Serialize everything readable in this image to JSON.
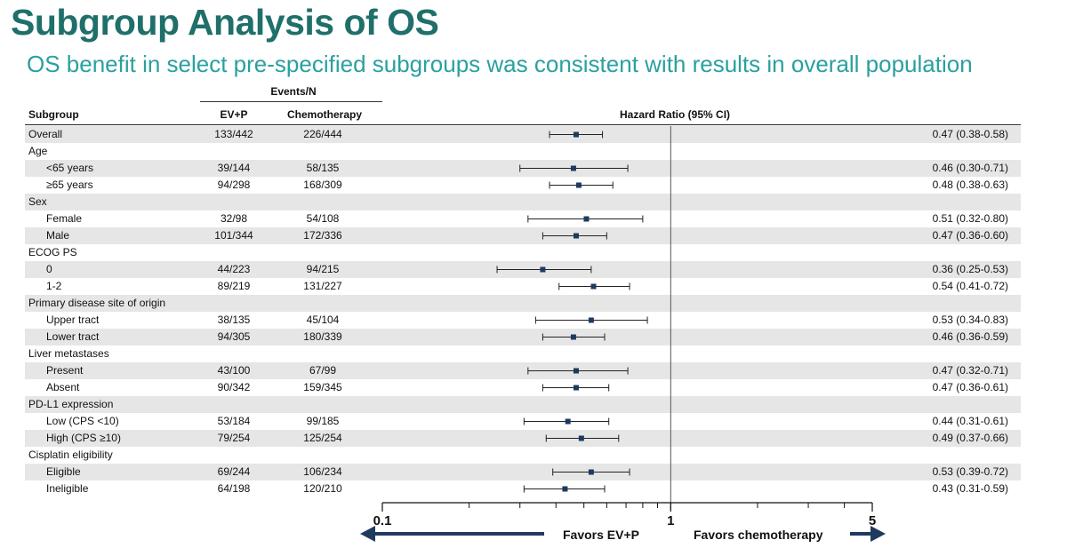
{
  "title": "Subgroup Analysis of OS",
  "subtitle": "OS benefit in select pre-specified subgroups was consistent with results in overall population",
  "table": {
    "events_header": "Events/N",
    "col_subgroup": "Subgroup",
    "col_evp": "EV+P",
    "col_chemo": "Chemotherapy",
    "col_hr": "Hazard Ratio (95% CI)"
  },
  "chart_data": {
    "type": "forest",
    "x_scale": "log",
    "xlim": [
      0.1,
      5
    ],
    "reference_line": 1,
    "ticks": [
      {
        "value": 0.1,
        "label": "0.1"
      },
      {
        "value": 1,
        "label": "1"
      },
      {
        "value": 5,
        "label": "5"
      }
    ],
    "favors_left": "Favors EV+P",
    "favors_right": "Favors chemotherapy",
    "rows": [
      {
        "label": "Overall",
        "indent": false,
        "shaded": true,
        "evp": "133/442",
        "chemo": "226/444",
        "hr": 0.47,
        "lo": 0.38,
        "hi": 0.58,
        "hr_text": "0.47 (0.38-0.58)"
      },
      {
        "label": "Age",
        "indent": false,
        "shaded": false,
        "evp": "",
        "chemo": "",
        "hr_text": ""
      },
      {
        "label": "<65 years",
        "indent": true,
        "shaded": true,
        "evp": "39/144",
        "chemo": "58/135",
        "hr": 0.46,
        "lo": 0.3,
        "hi": 0.71,
        "hr_text": "0.46 (0.30-0.71)"
      },
      {
        "label": "≥65 years",
        "indent": true,
        "shaded": false,
        "evp": "94/298",
        "chemo": "168/309",
        "hr": 0.48,
        "lo": 0.38,
        "hi": 0.63,
        "hr_text": "0.48 (0.38-0.63)"
      },
      {
        "label": "Sex",
        "indent": false,
        "shaded": true,
        "evp": "",
        "chemo": "",
        "hr_text": ""
      },
      {
        "label": "Female",
        "indent": true,
        "shaded": false,
        "evp": "32/98",
        "chemo": "54/108",
        "hr": 0.51,
        "lo": 0.32,
        "hi": 0.8,
        "hr_text": "0.51 (0.32-0.80)"
      },
      {
        "label": "Male",
        "indent": true,
        "shaded": true,
        "evp": "101/344",
        "chemo": "172/336",
        "hr": 0.47,
        "lo": 0.36,
        "hi": 0.6,
        "hr_text": "0.47 (0.36-0.60)"
      },
      {
        "label": "ECOG PS",
        "indent": false,
        "shaded": false,
        "evp": "",
        "chemo": "",
        "hr_text": ""
      },
      {
        "label": "0",
        "indent": true,
        "shaded": true,
        "evp": "44/223",
        "chemo": "94/215",
        "hr": 0.36,
        "lo": 0.25,
        "hi": 0.53,
        "hr_text": "0.36 (0.25-0.53)"
      },
      {
        "label": "1-2",
        "indent": true,
        "shaded": false,
        "evp": "89/219",
        "chemo": "131/227",
        "hr": 0.54,
        "lo": 0.41,
        "hi": 0.72,
        "hr_text": "0.54 (0.41-0.72)"
      },
      {
        "label": "Primary disease site of origin",
        "indent": false,
        "shaded": true,
        "evp": "",
        "chemo": "",
        "hr_text": ""
      },
      {
        "label": "Upper tract",
        "indent": true,
        "shaded": false,
        "evp": "38/135",
        "chemo": "45/104",
        "hr": 0.53,
        "lo": 0.34,
        "hi": 0.83,
        "hr_text": "0.53 (0.34-0.83)"
      },
      {
        "label": "Lower tract",
        "indent": true,
        "shaded": true,
        "evp": "94/305",
        "chemo": "180/339",
        "hr": 0.46,
        "lo": 0.36,
        "hi": 0.59,
        "hr_text": "0.46 (0.36-0.59)"
      },
      {
        "label": "Liver metastases",
        "indent": false,
        "shaded": false,
        "evp": "",
        "chemo": "",
        "hr_text": ""
      },
      {
        "label": "Present",
        "indent": true,
        "shaded": true,
        "evp": "43/100",
        "chemo": "67/99",
        "hr": 0.47,
        "lo": 0.32,
        "hi": 0.71,
        "hr_text": "0.47 (0.32-0.71)"
      },
      {
        "label": "Absent",
        "indent": true,
        "shaded": false,
        "evp": "90/342",
        "chemo": "159/345",
        "hr": 0.47,
        "lo": 0.36,
        "hi": 0.61,
        "hr_text": "0.47 (0.36-0.61)"
      },
      {
        "label": "PD-L1 expression",
        "indent": false,
        "shaded": true,
        "evp": "",
        "chemo": "",
        "hr_text": ""
      },
      {
        "label": "Low (CPS <10)",
        "indent": true,
        "shaded": false,
        "evp": "53/184",
        "chemo": "99/185",
        "hr": 0.44,
        "lo": 0.31,
        "hi": 0.61,
        "hr_text": "0.44 (0.31-0.61)"
      },
      {
        "label": "High (CPS ≥10)",
        "indent": true,
        "shaded": true,
        "evp": "79/254",
        "chemo": "125/254",
        "hr": 0.49,
        "lo": 0.37,
        "hi": 0.66,
        "hr_text": "0.49 (0.37-0.66)"
      },
      {
        "label": "Cisplatin eligibility",
        "indent": false,
        "shaded": false,
        "evp": "",
        "chemo": "",
        "hr_text": ""
      },
      {
        "label": "Eligible",
        "indent": true,
        "shaded": true,
        "evp": "69/244",
        "chemo": "106/234",
        "hr": 0.53,
        "lo": 0.39,
        "hi": 0.72,
        "hr_text": "0.53 (0.39-0.72)"
      },
      {
        "label": "Ineligible",
        "indent": true,
        "shaded": false,
        "evp": "64/198",
        "chemo": "120/210",
        "hr": 0.43,
        "lo": 0.31,
        "hi": 0.59,
        "hr_text": "0.43 (0.31-0.59)"
      }
    ]
  },
  "colors": {
    "title": "#1f6f6a",
    "subtitle": "#2aa0a0",
    "marker": "#1f3a5f",
    "arrow": "#1f3a5f",
    "shade": "#e6e6e6"
  }
}
